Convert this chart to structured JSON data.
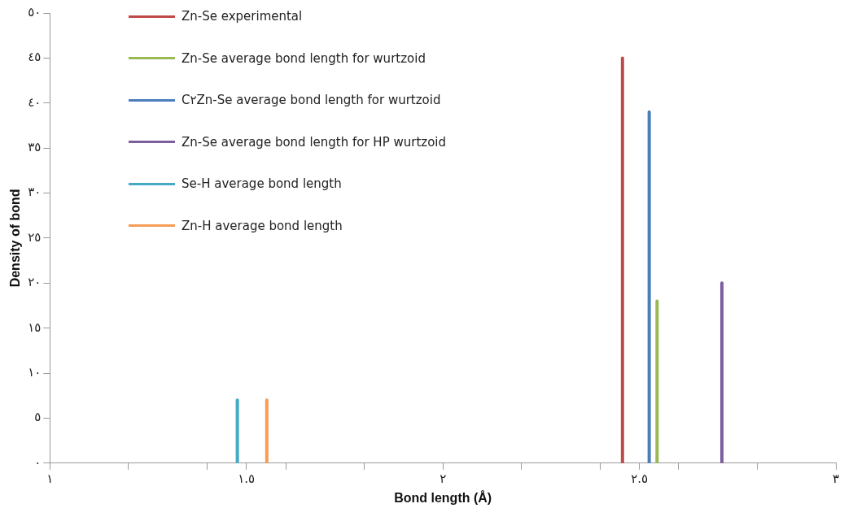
{
  "chart_data": {
    "type": "line",
    "xlabel": "Bond length (Å)",
    "ylabel": "Density of bond",
    "xlim": [
      1,
      3
    ],
    "xticks": [
      {
        "value": 1,
        "label": "١"
      },
      {
        "value": 1.2,
        "label": null
      },
      {
        "value": 1.4,
        "label": null
      },
      {
        "value": 1.5,
        "label": "١.٥"
      },
      {
        "value": 1.6,
        "label": null
      },
      {
        "value": 1.8,
        "label": null
      },
      {
        "value": 2,
        "label": "٢"
      },
      {
        "value": 2.2,
        "label": null
      },
      {
        "value": 2.4,
        "label": null
      },
      {
        "value": 2.5,
        "label": "٢.٥"
      },
      {
        "value": 2.6,
        "label": null
      },
      {
        "value": 2.8,
        "label": null
      },
      {
        "value": 3,
        "label": "٣"
      }
    ],
    "ylim": [
      0,
      50
    ],
    "yticks": [
      {
        "value": 0,
        "label": "٠"
      },
      {
        "value": 5,
        "label": "٥"
      },
      {
        "value": 10,
        "label": "١٠"
      },
      {
        "value": 15,
        "label": "١٥"
      },
      {
        "value": 20,
        "label": "٢٠"
      },
      {
        "value": 25,
        "label": "٢٥"
      },
      {
        "value": 30,
        "label": "٣٠"
      },
      {
        "value": 35,
        "label": "٣٥"
      },
      {
        "value": 40,
        "label": "٤٠"
      },
      {
        "value": 45,
        "label": "٤٥"
      },
      {
        "value": 50,
        "label": "٥٠"
      }
    ],
    "grid": false,
    "legend": "top left",
    "marker": "none",
    "line_style": "solid",
    "series": [
      {
        "name": "Zn-Se experimental",
        "color": "#be4b48",
        "x": [
          2.457,
          2.457
        ],
        "values": [
          0,
          45
        ]
      },
      {
        "name": "Zn-Se average bond length for wurtzoid",
        "color": "#98b954",
        "x": [
          2.545,
          2.545
        ],
        "values": [
          0,
          18
        ]
      },
      {
        "name": "C٢Zn-Se average bond length for wurtzoid",
        "color": "#4a7ebb",
        "x": [
          2.525,
          2.525
        ],
        "values": [
          0,
          39
        ]
      },
      {
        "name": "Zn-Se average bond length for HP wurtzoid",
        "color": "#7d5fa0",
        "x": [
          2.71,
          2.71
        ],
        "values": [
          0,
          20
        ]
      },
      {
        "name": "Se-H average bond length",
        "color": "#46aac5",
        "x": [
          1.477,
          1.477
        ],
        "values": [
          0,
          7
        ]
      },
      {
        "name": "Zn-H average bond length",
        "color": "#f59d56",
        "x": [
          1.552,
          1.552
        ],
        "values": [
          0,
          7
        ]
      }
    ]
  }
}
